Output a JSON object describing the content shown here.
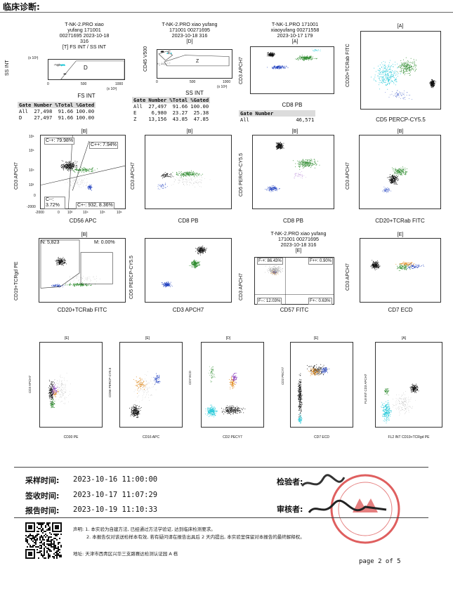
{
  "header": {
    "title": "临床诊断:"
  },
  "row1": {
    "plot1": {
      "title_lines": [
        "T-NK-2.PRO xiao",
        "yufang 171001",
        "00271695 2023-10-18",
        "316"
      ],
      "gate": "[T] FS INT / SS INT",
      "xlabel": "FS INT",
      "ylabel": "SS INT",
      "x_exp": "(x 10³)",
      "y_exp": "(x 10³)",
      "gate_region": "D",
      "xticks": [
        "0",
        "500",
        "1000"
      ],
      "yticks": [
        "0",
        "500",
        "1000"
      ],
      "table": {
        "headers": [
          "Gate",
          "Number",
          "%Total",
          "%Gated"
        ],
        "rows": [
          [
            "All",
            "27,498",
            "91.66",
            "100.00"
          ],
          [
            "D",
            "27,497",
            "91.66",
            "100.00"
          ]
        ]
      }
    },
    "plot2": {
      "title_lines": [
        "T-NK-2.PRO xiao yufang",
        "171001 00271695",
        "2023-10-18 316"
      ],
      "gate": "[D]",
      "xlabel": "SS INT",
      "ylabel": "CD45 V500",
      "x_exp": "(x 10³)",
      "regions": [
        "E",
        "Z"
      ],
      "xticks": [
        "0",
        "500",
        "1000"
      ],
      "yticks": [
        "10⁰",
        "10¹",
        "10²",
        "10³",
        "10⁴",
        "10⁵",
        "10⁶"
      ],
      "table": {
        "headers": [
          "Gate",
          "Number",
          "%Total",
          "%Gated"
        ],
        "rows": [
          [
            "All",
            "27,497",
            "91.66",
            "100.00"
          ],
          [
            "E",
            "6,980",
            "23.27",
            "25.38"
          ],
          [
            "Z",
            "13,156",
            "43.85",
            "47.85"
          ]
        ]
      }
    },
    "plot3": {
      "title_lines": [
        "T-NK-1.PRO 171001",
        "xiaoyufang 00271558",
        "2023-10-17 179"
      ],
      "gate": "[A]",
      "xlabel": "CD8 PB",
      "ylabel": "CD3 APCH7",
      "table": {
        "headers": [
          "Gate",
          "Number"
        ],
        "rows": [
          [
            "All",
            "46,571"
          ]
        ]
      }
    },
    "plot4": {
      "gate": "[A]",
      "xlabel": "CD5 PERCP-CY5.5",
      "ylabel": "CD20+TCRab FITC"
    }
  },
  "row2": {
    "plot1": {
      "gate": "[B]",
      "xlabel": "CD56 APC",
      "ylabel": "CD3 APCH7",
      "quadrants": [
        "C-+: 79.98%",
        "C++: 7.94%",
        "C--: 3.72%",
        "C+-: 932, 8.36%"
      ],
      "yticks": [
        "10⁶",
        "10⁵",
        "10⁴",
        "10³",
        "0",
        "-2000"
      ],
      "xticks": [
        "-2000",
        "0",
        "10³",
        "10⁴",
        "10⁵",
        "10⁶"
      ]
    },
    "plot2": {
      "gate": "[B]",
      "xlabel": "CD8 PB",
      "ylabel": "CD3 APCH7"
    },
    "plot3": {
      "gate": "[B]",
      "xlabel": "CD8 PB",
      "ylabel": "CD5 PERCP-CY5.5"
    },
    "plot4": {
      "gate": "[B]",
      "xlabel": "CD20+TCRab FITC",
      "ylabel": "CD3 APCH7"
    }
  },
  "row3": {
    "plot1": {
      "gate": "[B]",
      "xlabel": "CD20+TCRab FITC",
      "ylabel": "CD19+TCRgd PE",
      "regions": [
        "N: 5,823",
        "M: 0.00%"
      ]
    },
    "plot2": {
      "gate": "",
      "xlabel": "CD3 APCH7",
      "ylabel": "CD5 PERCP-CY5.5"
    },
    "plot3": {
      "title_lines": [
        "T-NK-2.PRO xiao yufang",
        "171001 00271695",
        "2023-10-18 316"
      ],
      "gate": "[E]",
      "xlabel": "CD57 FITC",
      "ylabel": "CD3 APCH7",
      "quadrants": [
        "F-+: 86.43%",
        "F++: 0.90%",
        "F--: 12.03%",
        "F+-: 0.63%"
      ]
    },
    "plot4": {
      "gate": "[E]",
      "xlabel": "CD7 ECD",
      "ylabel": "CD3 APCH7"
    }
  },
  "row4": {
    "plot1": {
      "gate": "[E]",
      "xlabel": "CD30 PE",
      "ylabel": "CD3 APCH7"
    },
    "plot2": {
      "gate": "[E]",
      "xlabel": "CD16 APC",
      "ylabel": "CD56 PERCP-CY5.5"
    },
    "plot3": {
      "gate": "[D]",
      "xlabel": "CD2 PECY7",
      "ylabel": "CD7 ECD"
    },
    "plot4": {
      "gate": "[E]",
      "xlabel": "CD7 ECD",
      "ylabel": "CD2 PECY7"
    },
    "plot5": {
      "gate": "[A]",
      "xlabel": "FL2 INT CD19+TCRgd PE",
      "ylabel": "FL8 INT CD3 APCH7"
    }
  },
  "footer": {
    "collect_label": "采样时间:",
    "collect_value": "2023-10-16  11:00:00",
    "receive_label": "签收时间:",
    "receive_value": "2023-10-17  11:07:29",
    "report_label": "报告时间:",
    "report_value": "2023-10-19  11:10:33",
    "inspector_label": "检验者:",
    "reviewer_label": "审核者:",
    "note1": "声明: 1. 本实验为自建方法, 已经通过方法学验证, 达到临床检测要求。",
    "note2": "2. 本报告仅对该送检样本有效, 若有疑问请在报告出具后 2 天内提出, 本实验室保留对本报告的最终解释权。",
    "address": "地址: 天津市西青区兴华三支路赛达检测认证园 A 栋",
    "page": "page 2 of 5"
  },
  "colors": {
    "green": "#2e8b2e",
    "blue": "#1f3fbf",
    "cyan": "#22c8d8",
    "black": "#111111",
    "gray": "#9a9a9a",
    "orange": "#e08a1e",
    "purple": "#8a3fbf",
    "stamp": "#d42a2a"
  }
}
